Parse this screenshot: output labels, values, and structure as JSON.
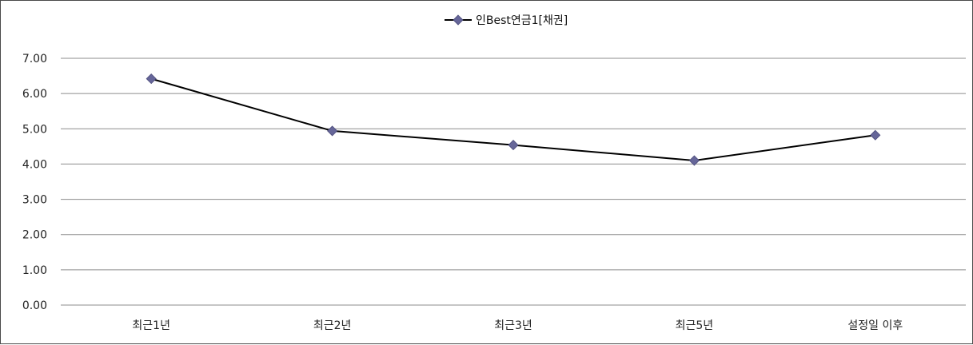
{
  "chart_data": {
    "type": "line",
    "categories": [
      "최근1년",
      "최근2년",
      "최근3년",
      "최근5년",
      "설정일 이후"
    ],
    "series": [
      {
        "name": "인Best연금1[채권]",
        "values": [
          6.42,
          4.94,
          4.54,
          4.1,
          4.82
        ]
      }
    ],
    "yticks": [
      "0.00",
      "1.00",
      "2.00",
      "3.00",
      "4.00",
      "5.00",
      "6.00",
      "7.00"
    ],
    "ylim": [
      0,
      7
    ],
    "grid": true,
    "legend_position": "top-center",
    "colors": {
      "line": "#000000",
      "marker": "#666699",
      "grid": "#8c8c8c",
      "frame": "#4a4a4a"
    }
  }
}
